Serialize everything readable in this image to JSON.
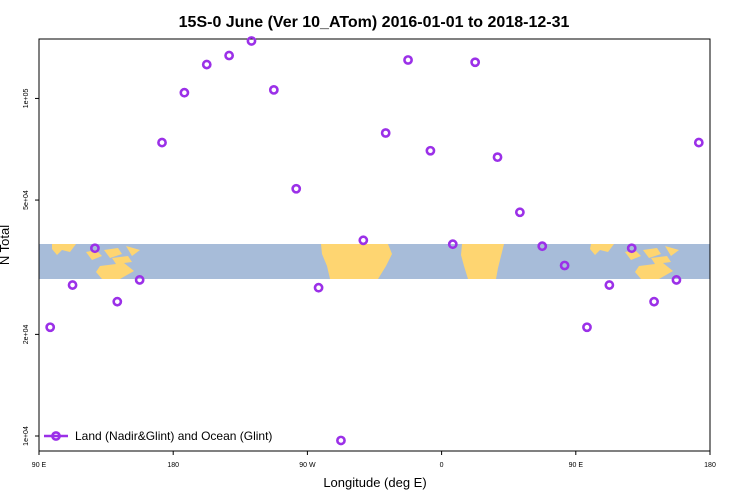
{
  "chart_data": {
    "type": "scatter",
    "title": "15S-0 June (Ver 10_ATom)   2016-01-01 to 2018-12-31",
    "xlabel": "Longitude (deg E)",
    "ylabel": "N Total",
    "xlim": [
      90,
      540
    ],
    "ylim_log": [
      10000,
      150000
    ],
    "x_ticks": [
      {
        "value": 90,
        "label": "90 E"
      },
      {
        "value": 180,
        "label": "180"
      },
      {
        "value": 270,
        "label": "90 W"
      },
      {
        "value": 360,
        "label": "0"
      },
      {
        "value": 450,
        "label": "90 E"
      },
      {
        "value": 540,
        "label": "180"
      }
    ],
    "y_ticks": [
      {
        "value": 10000,
        "label": "1e+04"
      },
      {
        "value": 20000,
        "label": "2e+04"
      },
      {
        "value": 50000,
        "label": "5e+04"
      },
      {
        "value": 100000,
        "label": "1e+05"
      }
    ],
    "series": [
      {
        "name": "Land (Nadir&Glint) and Ocean (Glint)",
        "color": "#9b30e8",
        "x": [
          97.5,
          112.5,
          127.5,
          142.5,
          157.5,
          172.5,
          187.5,
          202.5,
          217.5,
          232.5,
          247.5,
          262.5,
          277.5,
          292.5,
          307.5,
          322.5,
          337.5,
          352.5,
          367.5,
          382.5,
          397.5,
          412.5,
          427.5,
          442.5,
          457.5,
          472.5,
          487.5,
          502.5,
          517.5,
          532.5
        ],
        "y": [
          21000,
          28000,
          36000,
          25000,
          29000,
          74000,
          104000,
          126000,
          134000,
          148000,
          106000,
          54000,
          27500,
          9700,
          38000,
          79000,
          130000,
          70000,
          37000,
          128000,
          67000,
          46000,
          36500,
          32000,
          21000,
          28000,
          36000,
          25000,
          29000,
          74000
        ]
      }
    ],
    "legend_position": "bottom-left",
    "background_map": "blue ocean band with yellow land masses between about 20S and 0"
  }
}
